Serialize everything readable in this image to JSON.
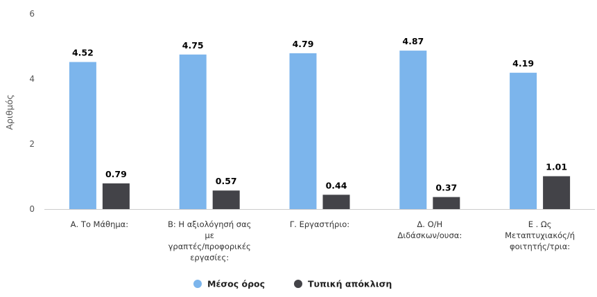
{
  "chart_data": {
    "type": "bar",
    "ylabel": "Αριθμός",
    "ylim": [
      0,
      6
    ],
    "yticks": [
      0,
      2,
      4,
      6
    ],
    "grid": false,
    "legend_position": "bottom",
    "categories": [
      [
        "Α. Το Μάθημα:"
      ],
      [
        "Β: Η αξιολόγησή σας",
        "με",
        "γραπτές/προφορικές",
        "εργασίες:"
      ],
      [
        "Γ. Εργαστήριο:"
      ],
      [
        "Δ. Ο/Η",
        "Διδάσκων/ουσα:"
      ],
      [
        "Ε . Ως",
        "Μεταπτυχιακός/ή",
        "φοιτητής/τρια:"
      ]
    ],
    "series": [
      {
        "name": "Μέσος όρος",
        "color": "#7cb5ec",
        "values": [
          4.52,
          4.75,
          4.79,
          4.87,
          4.19
        ],
        "labels": [
          "4.52",
          "4.75",
          "4.79",
          "4.87",
          "4.19"
        ]
      },
      {
        "name": "Τυπική απόκλιση",
        "color": "#434348",
        "values": [
          0.79,
          0.57,
          0.44,
          0.37,
          1.01
        ],
        "labels": [
          "0.79",
          "0.57",
          "0.44",
          "0.37",
          "1.01"
        ]
      }
    ]
  }
}
